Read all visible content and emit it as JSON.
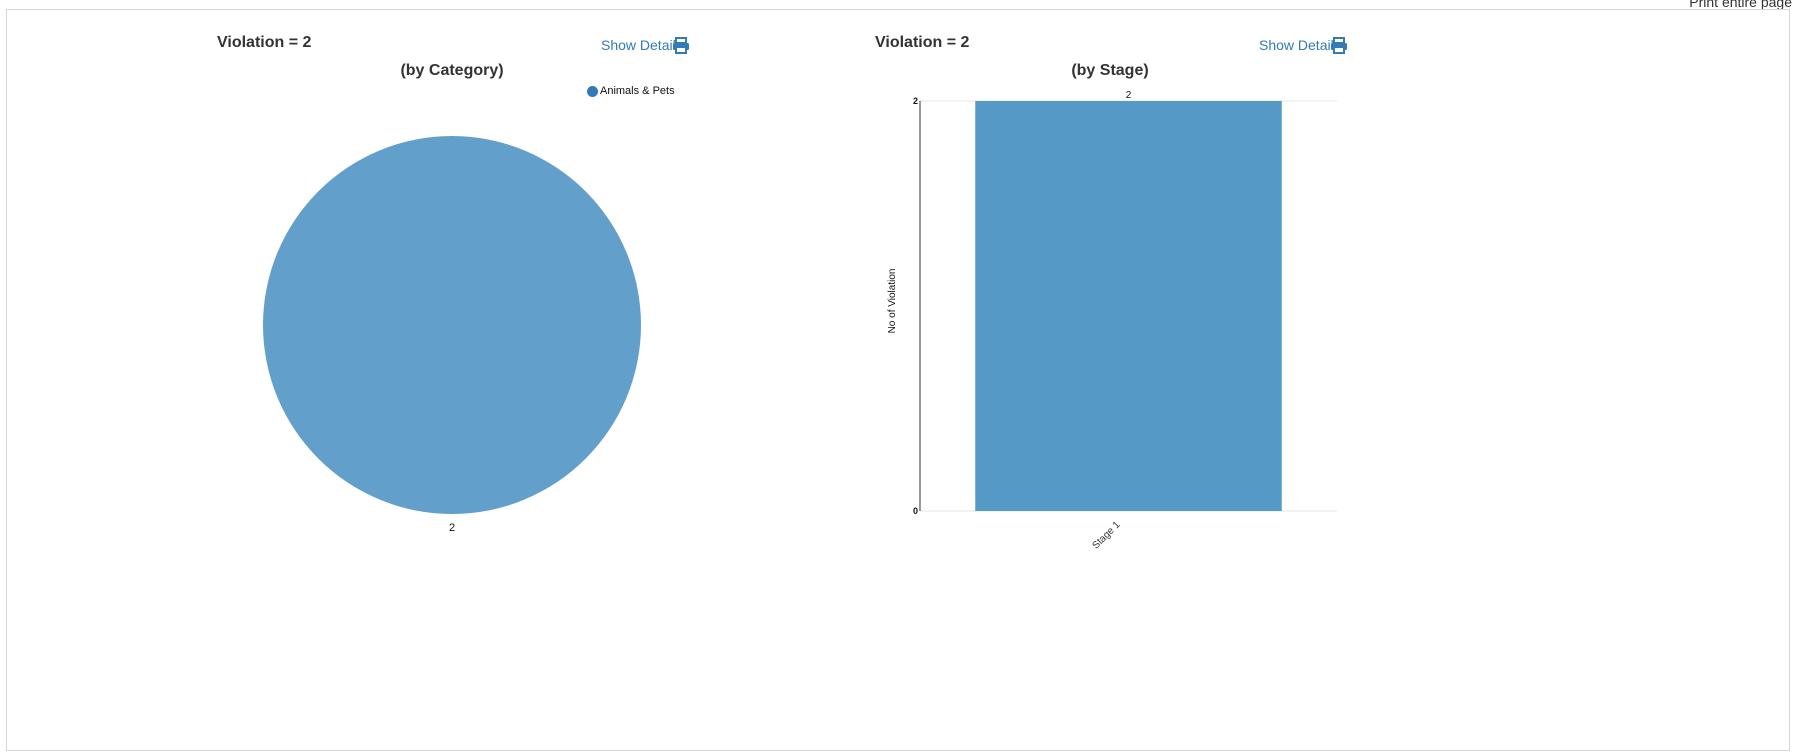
{
  "page": {
    "print_all_label": "Print entire page"
  },
  "left_chart": {
    "violation_title": "Violation = 2",
    "show_detail_label": "Show Detail",
    "subtitle": "(by Category)",
    "legend_label": "Animals & Pets",
    "slice_label": "2",
    "icon": "print-icon"
  },
  "right_chart": {
    "violation_title": "Violation = 2",
    "show_detail_label": "Show Detail",
    "subtitle": "(by Stage)",
    "icon": "print-icon"
  },
  "colors": {
    "pie_fill": "#639fcb",
    "bar_fill": "#5599c7",
    "legend_dot": "#2f7ab9",
    "link": "#337ab7"
  },
  "chart_data": [
    {
      "type": "pie",
      "title": "(by Category)",
      "categories": [
        "Animals & Pets"
      ],
      "values": [
        2
      ],
      "data_labels": [
        "2"
      ],
      "legend": "top-right"
    },
    {
      "type": "bar",
      "title": "(by Stage)",
      "categories": [
        "Stage 1"
      ],
      "values": [
        2
      ],
      "data_labels": [
        "2"
      ],
      "xlabel": "",
      "ylabel": "No of Violation",
      "ylim": [
        0,
        2
      ],
      "y_ticks": [
        "0",
        "2"
      ],
      "grid": true
    }
  ]
}
